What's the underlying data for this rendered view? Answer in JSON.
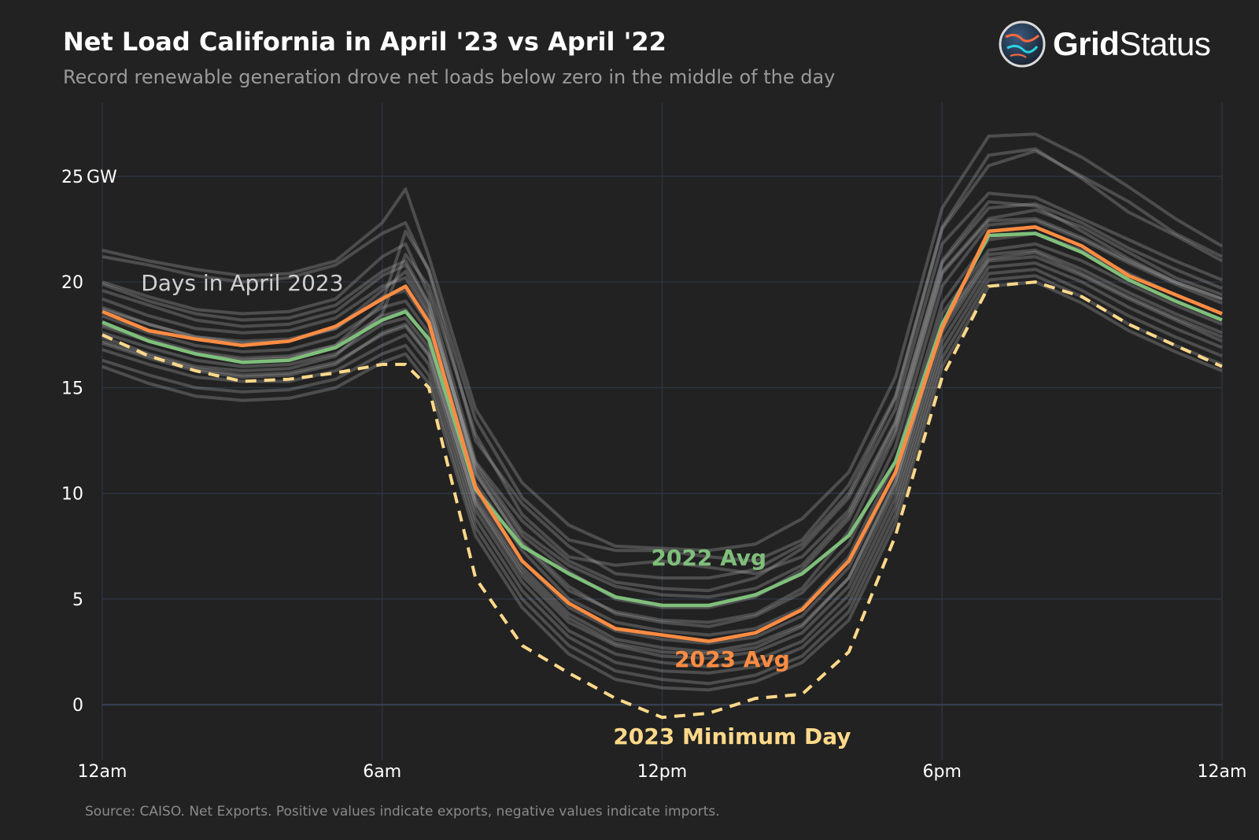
{
  "header": {
    "title": "Net Load California in April '23 vs April '22",
    "subtitle": "Record renewable generation drove net loads below zero in the middle of the day"
  },
  "logo": {
    "bold": "Grid",
    "regular": "Status"
  },
  "footer": {
    "source": "Source: CAISO. Net Exports. Positive values indicate exports, negative values indicate imports."
  },
  "colors": {
    "background": "#222222",
    "grid": "#2f3545",
    "days": "#bdbdbd",
    "avg2022": "#7fbf7b",
    "avg2023": "#ff8c42",
    "min2023": "#ffd98a"
  },
  "chart_data": {
    "type": "line",
    "title": "Net Load California in April '23 vs April '22",
    "xlabel": "",
    "ylabel": "",
    "x_hours": [
      0,
      1,
      2,
      3,
      4,
      5,
      6,
      6.5,
      7,
      8,
      9,
      10,
      11,
      12,
      13,
      14,
      15,
      16,
      17,
      18,
      19,
      20,
      21,
      22,
      23,
      24
    ],
    "xlim": [
      0,
      24
    ],
    "ylim": [
      -2.6,
      28.5
    ],
    "x_ticks": [
      {
        "value": 0,
        "label": "12am"
      },
      {
        "value": 6,
        "label": "6am"
      },
      {
        "value": 12,
        "label": "12pm"
      },
      {
        "value": 18,
        "label": "6pm"
      },
      {
        "value": 24,
        "label": "12am"
      }
    ],
    "y_ticks": [
      {
        "value": 0,
        "label": "0"
      },
      {
        "value": 5,
        "label": "5"
      },
      {
        "value": 10,
        "label": "10"
      },
      {
        "value": 15,
        "label": "15"
      },
      {
        "value": 20,
        "label": "20"
      },
      {
        "value": 25,
        "label": "25"
      }
    ],
    "y_unit": "GW",
    "grid": true,
    "series": [
      {
        "name": "2022 Avg",
        "style": "solid",
        "values": [
          18.1,
          17.2,
          16.6,
          16.2,
          16.3,
          16.9,
          18.2,
          18.6,
          17.3,
          10.2,
          7.5,
          6.2,
          5.1,
          4.7,
          4.7,
          5.2,
          6.2,
          8.0,
          11.5,
          18.0,
          22.2,
          22.3,
          21.4,
          20.1,
          19.1,
          18.2
        ]
      },
      {
        "name": "2023 Avg",
        "style": "solid",
        "values": [
          18.6,
          17.7,
          17.3,
          17.0,
          17.2,
          17.9,
          19.2,
          19.8,
          18.1,
          10.3,
          6.8,
          4.8,
          3.6,
          3.3,
          3.0,
          3.4,
          4.5,
          6.8,
          11.0,
          17.8,
          22.4,
          22.6,
          21.7,
          20.3,
          19.4,
          18.5
        ]
      },
      {
        "name": "2023 Minimum Day",
        "style": "dashed",
        "values": [
          17.5,
          16.5,
          15.8,
          15.3,
          15.4,
          15.7,
          16.1,
          16.1,
          15.0,
          6.0,
          2.8,
          1.5,
          0.3,
          -0.6,
          -0.4,
          0.3,
          0.5,
          2.5,
          8.0,
          15.5,
          19.8,
          20.0,
          19.3,
          18.0,
          17.0,
          16.0
        ]
      }
    ],
    "background_days_label": "Days in April 2023",
    "background_days": [
      [
        21.5,
        21.0,
        20.6,
        20.3,
        20.4,
        21.0,
        22.8,
        24.4,
        21.2,
        14.0,
        10.5,
        8.5,
        7.5,
        7.4,
        7.3,
        7.6,
        8.8,
        11.0,
        15.5,
        23.5,
        26.9,
        27.0,
        25.9,
        24.5,
        23.0,
        21.7
      ],
      [
        21.2,
        20.8,
        20.3,
        20.0,
        20.2,
        20.8,
        22.3,
        22.8,
        20.5,
        12.5,
        9.5,
        7.5,
        6.2,
        6.0,
        6.0,
        6.4,
        7.6,
        10.0,
        14.5,
        22.5,
        25.5,
        26.2,
        25.0,
        23.8,
        22.3,
        21.2
      ],
      [
        20.0,
        19.3,
        18.7,
        18.5,
        18.6,
        19.2,
        21.2,
        21.8,
        19.4,
        11.5,
        8.7,
        6.8,
        5.8,
        5.5,
        5.4,
        6.0,
        7.4,
        9.8,
        14.0,
        21.8,
        24.2,
        24.0,
        23.0,
        22.0,
        21.0,
        20.1
      ],
      [
        19.6,
        18.9,
        18.2,
        17.9,
        18.0,
        18.6,
        20.3,
        20.8,
        18.9,
        11.2,
        8.0,
        6.3,
        5.0,
        4.6,
        4.6,
        5.1,
        6.4,
        8.8,
        13.0,
        20.5,
        23.0,
        23.4,
        22.6,
        21.4,
        20.2,
        19.4
      ],
      [
        19.2,
        18.4,
        17.8,
        17.6,
        17.7,
        18.3,
        19.8,
        20.2,
        18.4,
        10.9,
        7.7,
        5.6,
        4.3,
        3.9,
        3.7,
        4.2,
        5.3,
        7.6,
        12.2,
        19.8,
        22.7,
        22.9,
        22.0,
        20.9,
        19.9,
        19.0
      ],
      [
        18.8,
        18.0,
        17.4,
        17.2,
        17.3,
        17.8,
        19.3,
        19.6,
        18.0,
        10.5,
        7.3,
        5.0,
        3.9,
        3.5,
        3.3,
        3.6,
        4.6,
        7.0,
        11.5,
        19.0,
        22.0,
        22.3,
        21.5,
        20.4,
        19.4,
        18.5
      ],
      [
        18.4,
        17.6,
        17.0,
        16.7,
        16.8,
        17.4,
        18.8,
        19.1,
        17.6,
        10.1,
        6.8,
        4.6,
        3.5,
        3.1,
        2.9,
        3.2,
        4.2,
        6.5,
        11.0,
        18.5,
        21.5,
        21.8,
        21.0,
        19.9,
        18.9,
        18.0
      ],
      [
        18.0,
        17.3,
        16.7,
        16.4,
        16.5,
        17.0,
        18.4,
        18.7,
        17.2,
        9.8,
        6.5,
        4.3,
        3.1,
        2.7,
        2.5,
        2.9,
        3.8,
        6.0,
        10.5,
        18.0,
        21.3,
        21.5,
        20.6,
        19.5,
        18.5,
        17.6
      ],
      [
        17.6,
        16.9,
        16.3,
        16.0,
        16.1,
        16.6,
        18.0,
        18.3,
        16.9,
        9.5,
        6.1,
        3.9,
        2.8,
        2.3,
        2.2,
        2.5,
        3.4,
        5.6,
        10.2,
        17.6,
        21.0,
        21.2,
        20.3,
        19.2,
        18.2,
        17.2
      ],
      [
        17.2,
        16.5,
        15.9,
        15.6,
        15.7,
        16.2,
        17.5,
        17.9,
        16.5,
        9.2,
        5.8,
        3.5,
        2.4,
        2.0,
        1.8,
        2.1,
        3.0,
        5.2,
        9.8,
        17.2,
        20.7,
        20.9,
        20.0,
        18.8,
        17.8,
        16.9
      ],
      [
        16.8,
        16.1,
        15.5,
        15.3,
        15.3,
        15.8,
        17.0,
        17.5,
        16.1,
        8.8,
        5.4,
        3.2,
        2.0,
        1.6,
        1.5,
        1.8,
        2.7,
        4.8,
        9.4,
        16.8,
        20.4,
        20.6,
        19.6,
        18.4,
        17.4,
        16.5
      ],
      [
        16.3,
        15.6,
        15.0,
        14.8,
        14.9,
        15.4,
        16.6,
        17.0,
        15.6,
        8.4,
        5.0,
        2.8,
        1.6,
        1.2,
        1.0,
        1.4,
        2.3,
        4.4,
        9.0,
        16.4,
        20.1,
        20.3,
        19.3,
        18.0,
        17.0,
        16.1
      ],
      [
        16.0,
        15.2,
        14.6,
        14.4,
        14.5,
        15.0,
        16.2,
        16.6,
        15.2,
        8.0,
        4.6,
        2.4,
        1.2,
        0.8,
        0.7,
        1.1,
        2.0,
        4.0,
        8.6,
        16.0,
        19.8,
        20.0,
        19.0,
        17.7,
        16.7,
        15.8
      ],
      [
        17.4,
        16.6,
        16.0,
        15.8,
        15.9,
        16.5,
        18.5,
        21.3,
        19.8,
        12.8,
        9.0,
        7.0,
        6.6,
        6.8,
        6.5,
        6.2,
        7.0,
        9.2,
        13.4,
        21.0,
        23.8,
        23.6,
        22.4,
        21.1,
        20.0,
        19.2
      ],
      [
        17.9,
        17.2,
        16.6,
        16.3,
        16.4,
        17.0,
        19.0,
        22.4,
        20.6,
        13.5,
        9.8,
        7.8,
        7.3,
        7.3,
        7.0,
        6.8,
        7.8,
        10.4,
        14.6,
        22.6,
        26.0,
        26.3,
        24.9,
        23.3,
        22.2,
        21.0
      ],
      [
        18.7,
        18.0,
        17.4,
        17.1,
        17.2,
        17.8,
        19.6,
        20.5,
        18.6,
        11.4,
        8.2,
        6.6,
        5.6,
        5.2,
        5.1,
        5.5,
        6.6,
        9.0,
        13.3,
        20.9,
        23.5,
        23.7,
        22.8,
        21.6,
        20.6,
        19.7
      ],
      [
        19.9,
        19.1,
        18.5,
        18.2,
        18.3,
        18.9,
        20.5,
        21.0,
        19.0,
        11.0,
        7.6,
        5.4,
        4.4,
        4.0,
        3.9,
        4.3,
        5.5,
        8.2,
        12.8,
        20.4,
        22.9,
        23.0,
        22.1,
        21.0,
        20.0,
        19.2
      ],
      [
        17.1,
        16.4,
        15.8,
        15.5,
        15.6,
        16.1,
        17.6,
        18.0,
        16.6,
        9.6,
        6.3,
        4.1,
        2.9,
        2.5,
        2.4,
        2.7,
        3.7,
        6.0,
        10.6,
        17.9,
        21.1,
        21.4,
        20.4,
        19.3,
        18.3,
        17.4
      ]
    ],
    "annotations": [
      {
        "text": "Days in April 2023",
        "x": 3.0,
        "y": 19.6,
        "color": "#d0d0d0",
        "bold": false
      },
      {
        "text": "2022 Avg",
        "x": 13.0,
        "y": 6.6,
        "color": "#7fbf7b",
        "bold": true
      },
      {
        "text": "2023 Avg",
        "x": 13.5,
        "y": 1.8,
        "color": "#ff8c42",
        "bold": true
      },
      {
        "text": "2023 Minimum Day",
        "x": 13.5,
        "y": -1.85,
        "color": "#ffd98a",
        "bold": true
      }
    ]
  }
}
